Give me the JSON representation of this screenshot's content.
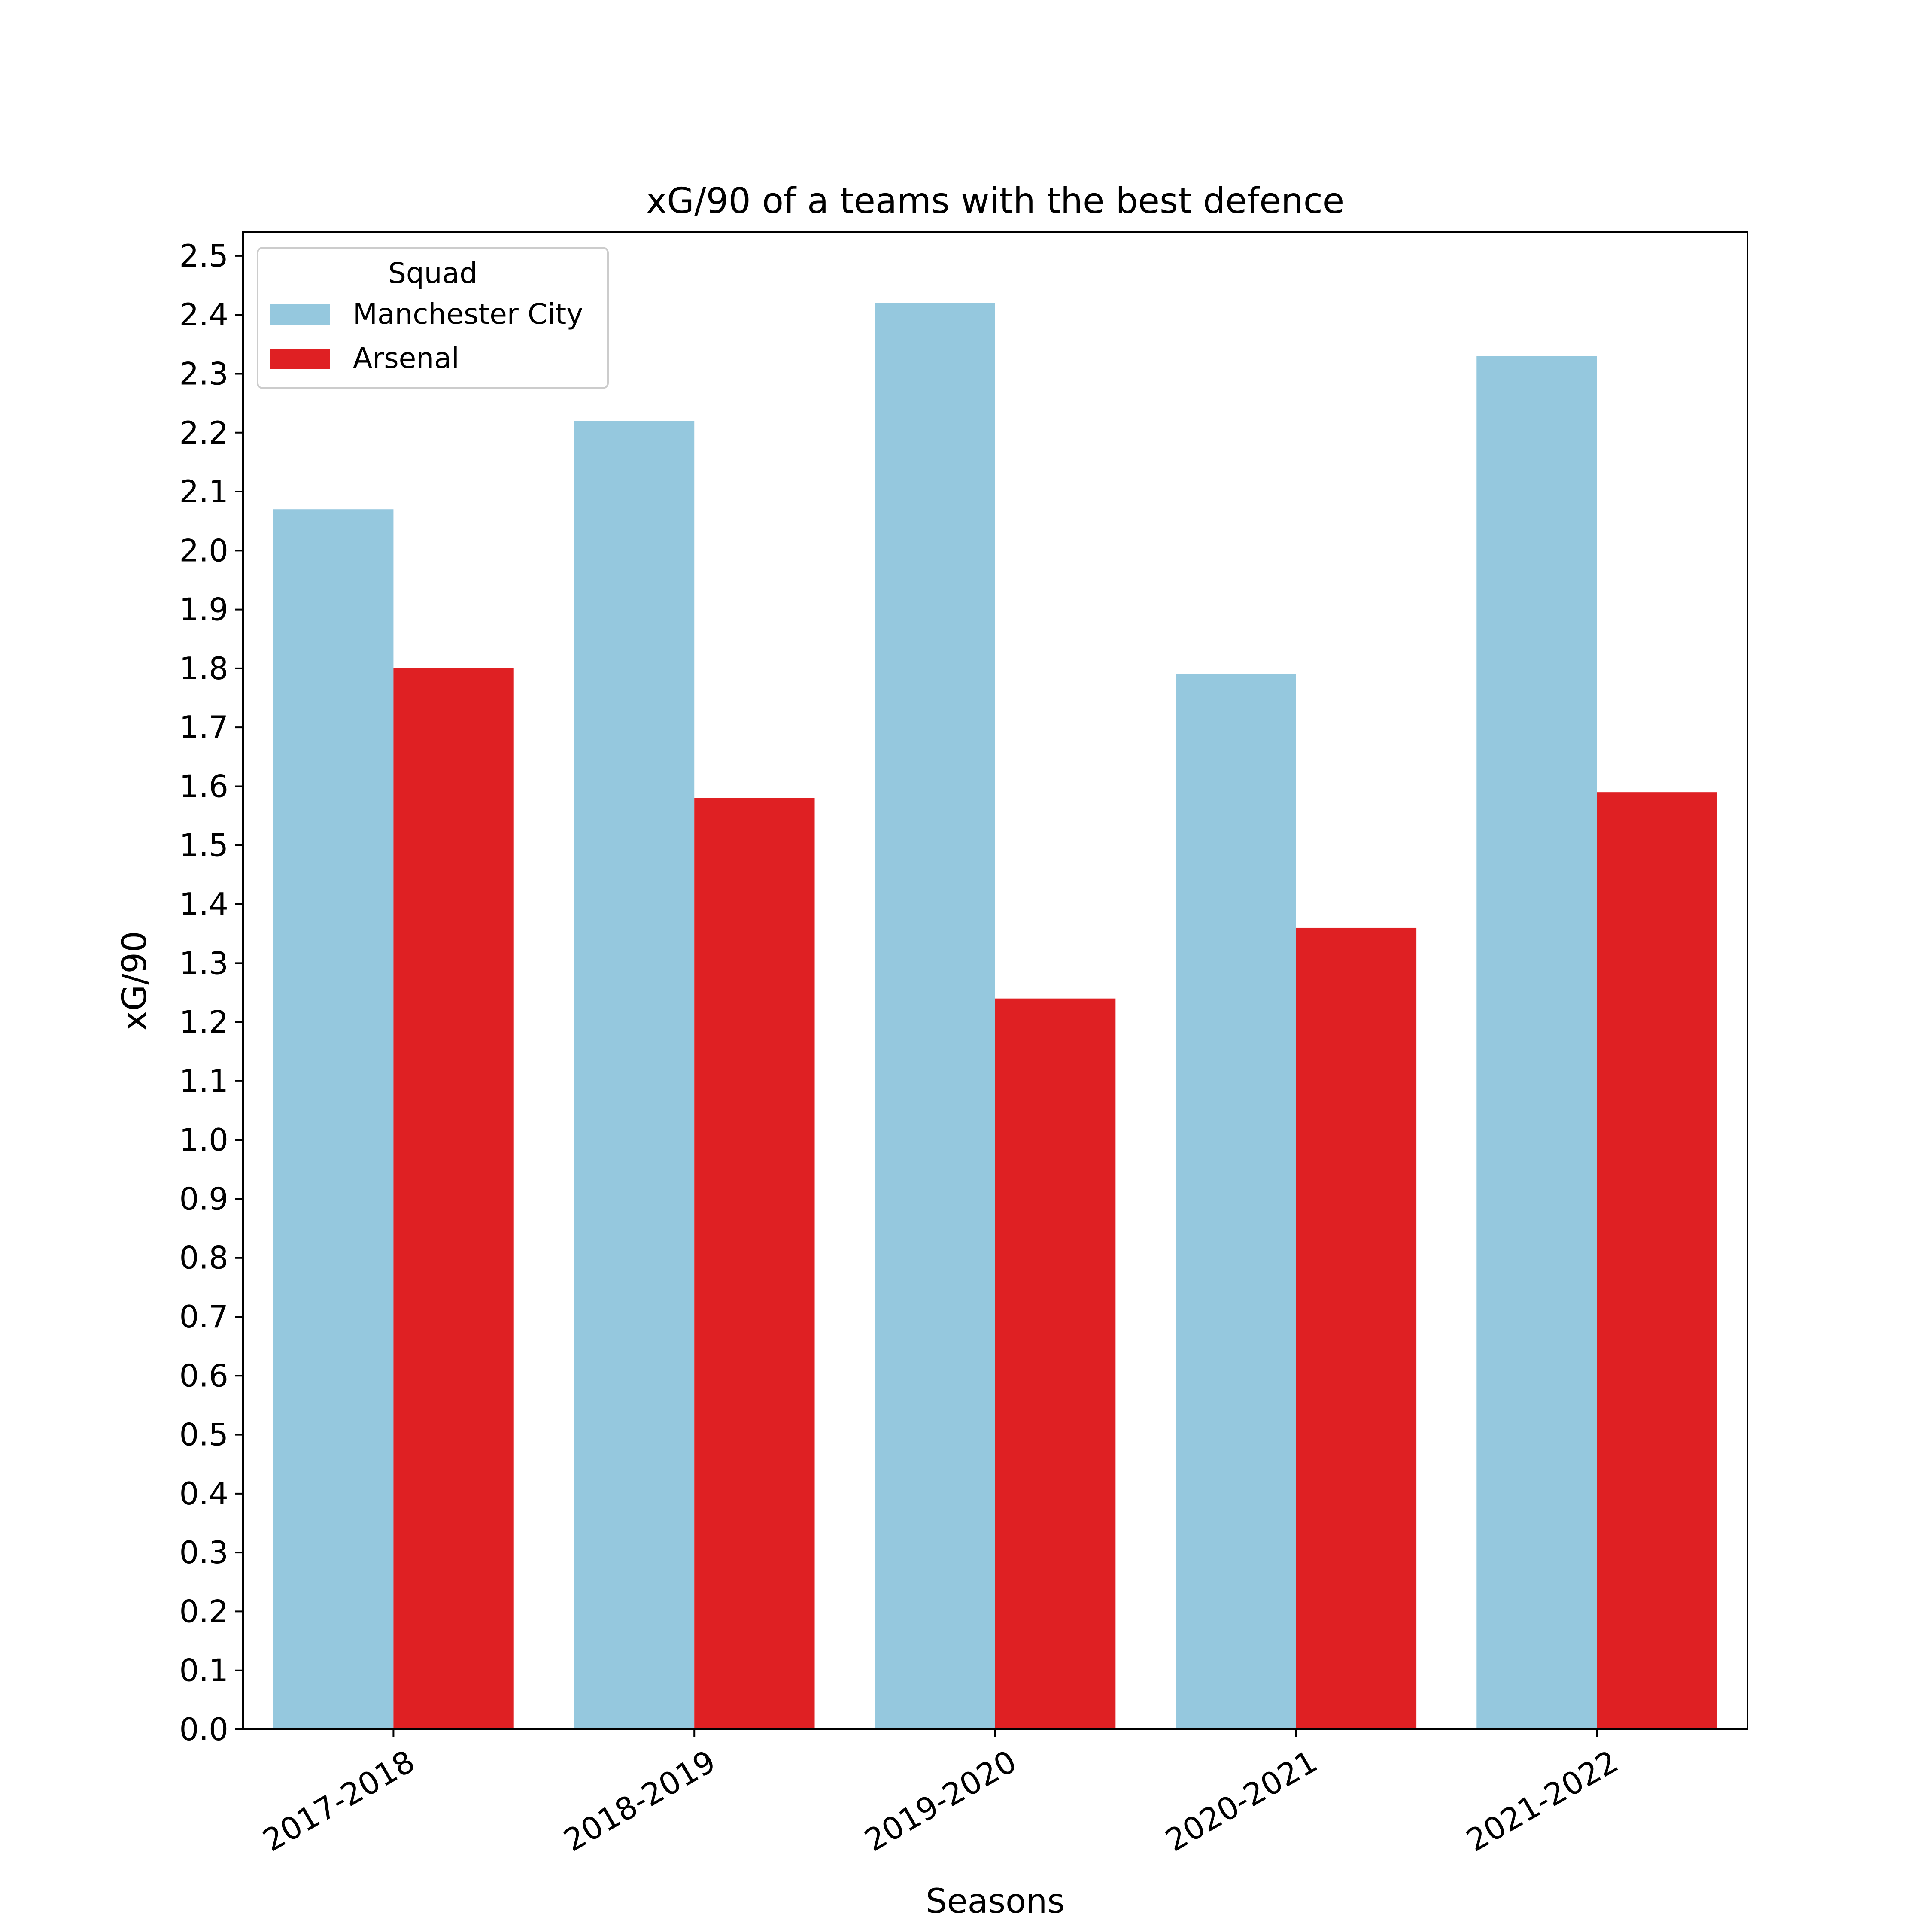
{
  "chart_data": {
    "type": "bar",
    "title": "xG/90 of a teams with the best defence",
    "xlabel": "Seasons",
    "ylabel": "xG/90",
    "categories": [
      "2017-2018",
      "2018-2019",
      "2019-2020",
      "2020-2021",
      "2021-2022"
    ],
    "series": [
      {
        "name": "Manchester City",
        "color": "#95c8de",
        "values": [
          2.07,
          2.22,
          2.42,
          1.79,
          2.33
        ]
      },
      {
        "name": "Arsenal",
        "color": "#df2023",
        "values": [
          1.8,
          1.58,
          1.24,
          1.36,
          1.59
        ]
      }
    ],
    "ylim": [
      0,
      2.54
    ],
    "yticks": [
      0.0,
      0.1,
      0.2,
      0.3,
      0.4,
      0.5,
      0.6,
      0.7,
      0.8,
      0.9,
      1.0,
      1.1,
      1.2,
      1.3,
      1.4,
      1.5,
      1.6,
      1.7,
      1.8,
      1.9,
      2.0,
      2.1,
      2.2,
      2.3,
      2.4,
      2.5
    ],
    "ytick_labels": [
      "0.0",
      "0.1",
      "0.2",
      "0.3",
      "0.4",
      "0.5",
      "0.6",
      "0.7",
      "0.8",
      "0.9",
      "1.0",
      "1.1",
      "1.2",
      "1.3",
      "1.4",
      "1.5",
      "1.6",
      "1.7",
      "1.8",
      "1.9",
      "2.0",
      "2.1",
      "2.2",
      "2.3",
      "2.4",
      "2.5"
    ],
    "grid": false,
    "legend": {
      "title": "Squad",
      "placement": "top-left"
    }
  }
}
